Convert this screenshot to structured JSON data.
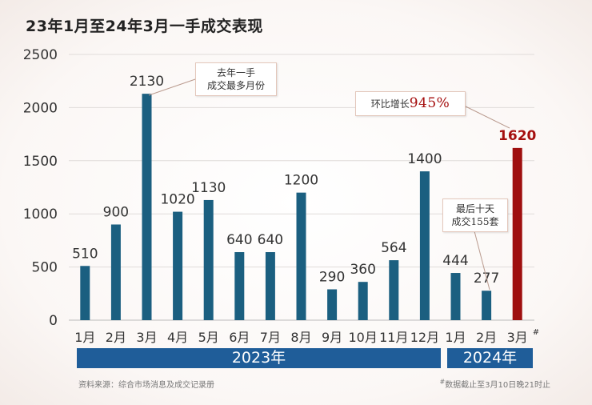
{
  "title": "23年1月至24年3月一手成交表现",
  "chart_data": {
    "type": "bar",
    "categories": [
      "1月",
      "2月",
      "3月",
      "4月",
      "5月",
      "6月",
      "7月",
      "8月",
      "9月",
      "10月",
      "11月",
      "12月",
      "1月",
      "2月",
      "3月"
    ],
    "values": [
      510,
      900,
      2130,
      1020,
      1130,
      640,
      640,
      1200,
      290,
      360,
      564,
      1400,
      444,
      277,
      1620
    ],
    "ylim": [
      0,
      2500
    ],
    "yticks": [
      0,
      500,
      1000,
      1500,
      2000,
      2500
    ],
    "highlight_index": 14,
    "last_tick_mark": "#",
    "colors": {
      "bar": "#1b5f80",
      "highlight": "#9f0f0f",
      "year_bar": "#1f5d99"
    },
    "year_groups": [
      {
        "label": "2023年",
        "start": 0,
        "end": 11
      },
      {
        "label": "2024年",
        "start": 12,
        "end": 14
      }
    ]
  },
  "callouts": {
    "peak_line1": "去年一手",
    "peak_line2": "成交最多月份",
    "growth_prefix": "环比增长",
    "growth_value": "945%",
    "last_days_line1": "最后十天",
    "last_days_line2": "成交155套"
  },
  "footer": {
    "source": "资料来源：综合市场消息及成交记录册",
    "note_mark": "#",
    "note": "数据截止至3月10日晚21时止"
  }
}
